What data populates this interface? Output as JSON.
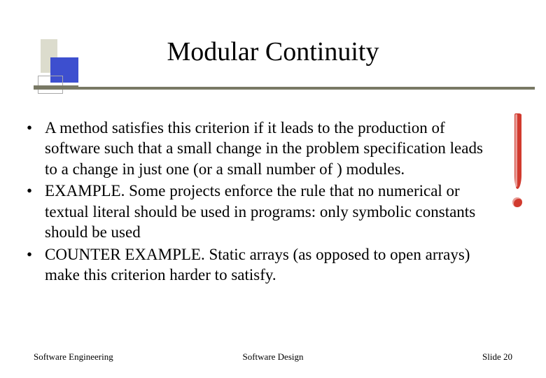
{
  "colors": {
    "title_block": "#3d4fcf",
    "title_back_block": "#dcdccd",
    "title_rule": "#787864",
    "exclaim": "#d13a2e",
    "text": "#000000",
    "background": "#ffffff"
  },
  "title": "Modular Continuity",
  "fontsize": {
    "title": 38,
    "body": 23,
    "footer": 13
  },
  "bullets": [
    "A method satisfies this criterion if it leads to the production of software such that a small change in the problem specification leads to a change in just one (or a small number of ) modules.",
    "EXAMPLE. Some projects enforce the rule that no numerical or textual literal should be used in programs: only symbolic constants should be used",
    "COUNTER EXAMPLE. Static arrays (as opposed to open arrays) make this criterion harder to satisfy."
  ],
  "footer": {
    "left": "Software Engineering",
    "center": "Software Design",
    "right": "Slide  20"
  }
}
